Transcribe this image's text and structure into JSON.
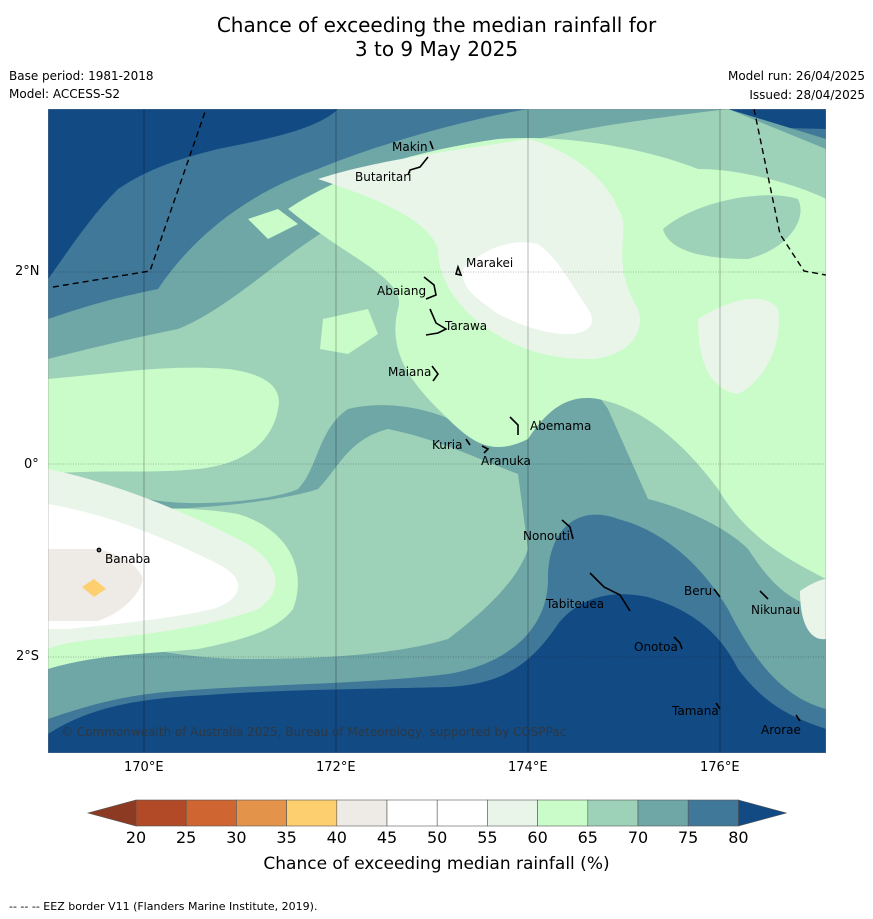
{
  "header": {
    "title_line1": "Chance of exceeding the median rainfall for",
    "title_line2": "3 to 9 May 2025",
    "base_period": "Base period: 1981-2018",
    "model": "Model: ACCESS-S2",
    "model_run": "Model run: 26/04/2025",
    "issued": "Issued: 28/04/2025"
  },
  "map": {
    "lon_range": [
      169.0,
      177.1
    ],
    "lat_range": [
      -3.0,
      3.7
    ],
    "lon_ticks": [
      "170°E",
      "172°E",
      "174°E",
      "176°E"
    ],
    "lat_ticks": [
      "2°N",
      "0°",
      "2°S"
    ],
    "copyright": "© Commonwealth of Australia 2025, Bureau of Meteorology, supported by COSPPac",
    "places": [
      "Makin",
      "Butaritari",
      "Marakei",
      "Abaiang",
      "Tarawa",
      "Maiana",
      "Abemama",
      "Kuria",
      "Aranuka",
      "Banaba",
      "Nonouti",
      "Tabiteuea",
      "Beru",
      "Nikunau",
      "Onotoa",
      "Tamana",
      "Arorae"
    ],
    "eez_border": "dashed"
  },
  "colorbar": {
    "ticks": [
      "20",
      "25",
      "30",
      "35",
      "40",
      "45",
      "50",
      "55",
      "60",
      "65",
      "70",
      "75",
      "80"
    ],
    "colors": [
      "#b24a28",
      "#cf6531",
      "#e3944a",
      "#fdcf6e",
      "#eeebe6",
      "#ffffff",
      "#ffffff",
      "#eaf5ea",
      "#c9fcc9",
      "#9dd2b8",
      "#6fa6a6",
      "#3f7899"
    ],
    "under_color": "#8c3a22",
    "over_color": "#124a84",
    "label": "Chance of exceeding median rainfall (%)"
  },
  "footer": {
    "eez_legend": "--  --  -- EEZ border V11 (Flanders Marine Institute, 2019)."
  }
}
